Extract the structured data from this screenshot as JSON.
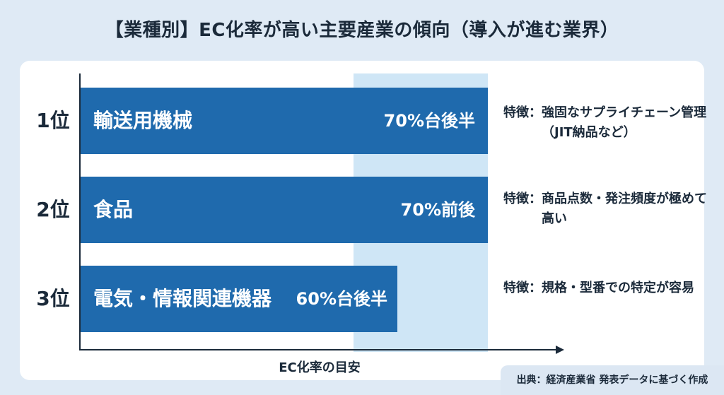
{
  "title": "【業種別】EC化率が高い主要産業の傾向（導入が進む業界）",
  "chart_data": {
    "type": "bar",
    "orientation": "horizontal",
    "categories": [
      "輸送用機械",
      "食品",
      "電気・情報関連機器"
    ],
    "ranks": [
      "1位",
      "2位",
      "3位"
    ],
    "values": [
      76,
      70,
      66
    ],
    "value_labels": [
      "70%台後半",
      "70%前後",
      "60%台後半"
    ],
    "xlabel": "EC化率の目安",
    "ylabel": "",
    "xlim": [
      0,
      100
    ],
    "grid": false
  },
  "features": [
    {
      "prefix": "特徴：",
      "text": "強固なサプライチェーン管理（JIT納品など）"
    },
    {
      "prefix": "特徴：",
      "text": "商品点数・発注頻度が極めて高い"
    },
    {
      "prefix": "特徴：",
      "text": "規格・型番での特定が容易"
    }
  ],
  "source": "出典：経済産業省 発表データに基づく作成",
  "colors": {
    "bar": "#1f6aad",
    "highlight": "#cfe6f6",
    "background": "#dfeaf5"
  }
}
